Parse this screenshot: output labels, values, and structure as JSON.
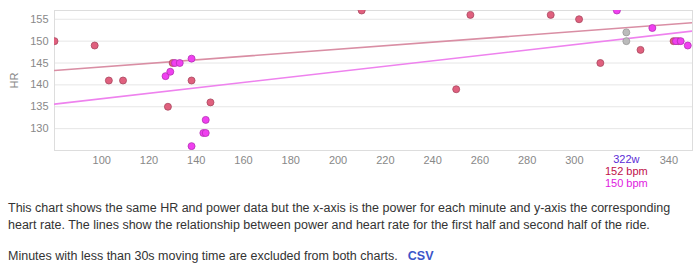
{
  "chart_data": {
    "type": "scatter",
    "y_label": "HR",
    "xlim": [
      80,
      350
    ],
    "ylim": [
      125,
      157
    ],
    "xticks": [
      100,
      120,
      140,
      160,
      180,
      200,
      220,
      240,
      260,
      280,
      300,
      340
    ],
    "yticks": [
      130,
      135,
      140,
      145,
      150,
      155
    ],
    "grid": true,
    "series": [
      {
        "type": "scatter",
        "color": "#e0607e",
        "marker": "circle",
        "x": [
          80,
          97,
          103,
          109,
          128,
          130,
          138,
          146,
          210,
          250,
          256,
          290,
          302,
          311,
          328,
          342,
          344
        ],
        "values": [
          150,
          149,
          141,
          141,
          135,
          145,
          141,
          136,
          157,
          139,
          156,
          156,
          155,
          145,
          148,
          150,
          150
        ]
      },
      {
        "type": "scatter",
        "color": "#f040f0",
        "marker": "circle",
        "x": [
          127,
          129,
          131,
          133,
          138,
          138,
          143,
          144,
          144,
          318,
          333,
          343,
          345,
          348
        ],
        "values": [
          142,
          143,
          145,
          145,
          146,
          126,
          129,
          129,
          132,
          157,
          153,
          150,
          150,
          149
        ]
      },
      {
        "type": "line",
        "color": "#d98ea4",
        "x": [
          80,
          350
        ],
        "values": [
          143.3,
          154.2
        ]
      },
      {
        "type": "line",
        "color": "#ee82ee",
        "x": [
          80,
          350
        ],
        "values": [
          135.6,
          152.3
        ]
      }
    ],
    "hover": {
      "x": 322,
      "x_label": "322w",
      "x_color": "#5b2bd6",
      "values": [
        152,
        150
      ],
      "labels": [
        "152 bpm",
        "150 bpm"
      ],
      "colors": [
        "#c0104a",
        "#e020e0"
      ]
    },
    "caption": [
      "This chart shows the same HR and power data but the x-axis is the power for each minute and y-axis the corresponding heart rate. The lines show the relationship between power and heart rate for the first half and second half of the ride.",
      "Minutes with less than 30s moving time are excluded from both charts."
    ],
    "link": "CSV"
  }
}
